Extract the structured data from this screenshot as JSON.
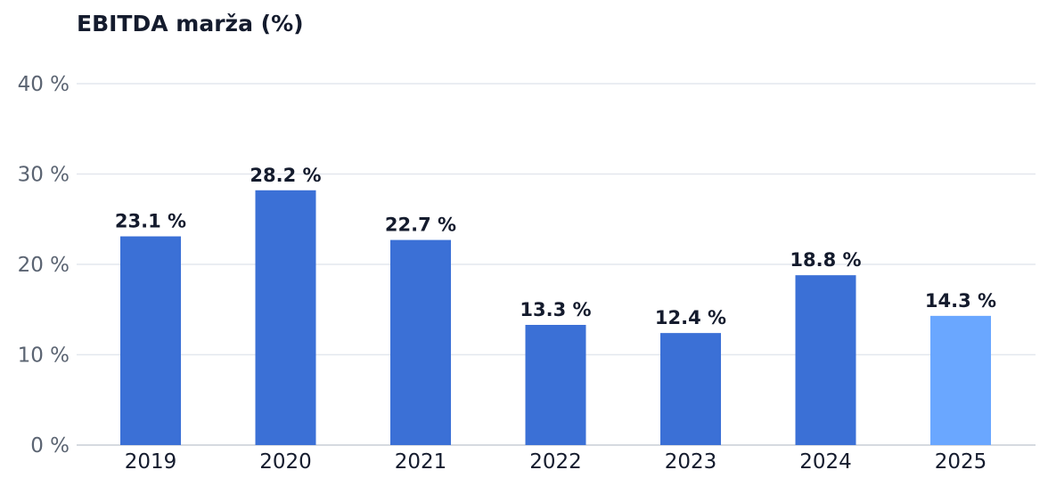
{
  "chart_data": {
    "type": "bar",
    "title": "EBITDA marža (%)",
    "xlabel": "",
    "ylabel": "",
    "categories": [
      "2019",
      "2020",
      "2021",
      "2022",
      "2023",
      "2024",
      "2025"
    ],
    "values": [
      23.1,
      28.2,
      22.7,
      13.3,
      12.4,
      18.8,
      14.3
    ],
    "data_labels": [
      "23.1 %",
      "28.2 %",
      "22.7 %",
      "13.3 %",
      "12.4 %",
      "18.8 %",
      "14.3 %"
    ],
    "ylim": [
      0,
      40
    ],
    "yticks": [
      0,
      10,
      20,
      30,
      40
    ],
    "ytick_labels": [
      "0 %",
      "10 %",
      "20 %",
      "30 %",
      "40 %"
    ],
    "grid": true,
    "colors": {
      "bar": "#3b70d6",
      "bar_highlight": "#6aa7ff",
      "highlight_category": "2025"
    }
  }
}
